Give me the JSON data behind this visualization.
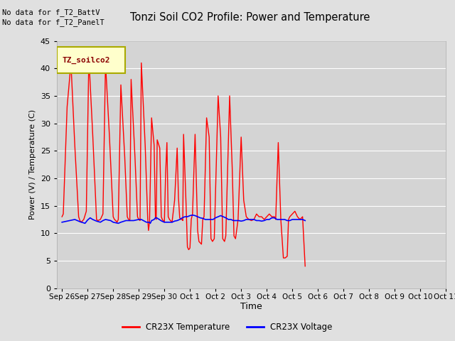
{
  "title": "Tonzi Soil CO2 Profile: Power and Temperature",
  "ylabel": "Power (V) / Temperature (C)",
  "xlabel": "Time",
  "ylim": [
    0,
    45
  ],
  "yticks": [
    0,
    5,
    10,
    15,
    20,
    25,
    30,
    35,
    40,
    45
  ],
  "fig_bg": "#e0e0e0",
  "plot_bg": "#d4d4d4",
  "annotations": [
    "No data for f_T2_BattV",
    "No data for f_T2_PanelT"
  ],
  "legend_box_label": "TZ_soilco2",
  "legend_box_color": "#ffffcc",
  "legend_box_border": "#aaaa00",
  "legend_entries": [
    "CR23X Temperature",
    "CR23X Voltage"
  ],
  "legend_colors": [
    "red",
    "blue"
  ],
  "temp_color": "red",
  "volt_color": "blue",
  "x_tick_labels": [
    "Sep 26",
    "Sep 27",
    "Sep 28",
    "Sep 29",
    "Sep 30",
    "Oct 1",
    "Oct 2",
    "Oct 3",
    "Oct 4",
    "Oct 5",
    "Oct 6",
    "Oct 7",
    "Oct 8",
    "Oct 9",
    "Oct 10",
    "Oct 11"
  ],
  "x_tick_positions": [
    0,
    1,
    2,
    3,
    4,
    5,
    6,
    7,
    8,
    9,
    10,
    11,
    12,
    13,
    14,
    15
  ],
  "temp_data": [
    [
      0.0,
      13.0
    ],
    [
      0.05,
      13.5
    ],
    [
      0.2,
      33.0
    ],
    [
      0.35,
      41.0
    ],
    [
      0.5,
      26.0
    ],
    [
      0.65,
      13.0
    ],
    [
      0.7,
      12.3
    ],
    [
      0.75,
      12.0
    ],
    [
      0.85,
      12.5
    ],
    [
      0.95,
      14.0
    ],
    [
      1.05,
      42.0
    ],
    [
      1.2,
      28.0
    ],
    [
      1.35,
      12.5
    ],
    [
      1.4,
      12.3
    ],
    [
      1.5,
      12.5
    ],
    [
      1.6,
      13.5
    ],
    [
      1.7,
      41.0
    ],
    [
      1.85,
      28.0
    ],
    [
      2.0,
      13.0
    ],
    [
      2.05,
      12.5
    ],
    [
      2.1,
      12.3
    ],
    [
      2.15,
      12.0
    ],
    [
      2.2,
      12.5
    ],
    [
      2.3,
      37.0
    ],
    [
      2.45,
      24.0
    ],
    [
      2.55,
      13.0
    ],
    [
      2.6,
      12.5
    ],
    [
      2.65,
      12.3
    ],
    [
      2.7,
      38.0
    ],
    [
      2.85,
      24.0
    ],
    [
      2.95,
      13.0
    ],
    [
      3.0,
      12.5
    ],
    [
      3.05,
      12.3
    ],
    [
      3.1,
      41.0
    ],
    [
      3.25,
      26.0
    ],
    [
      3.35,
      12.5
    ],
    [
      3.38,
      10.5
    ],
    [
      3.42,
      12.0
    ],
    [
      3.5,
      31.0
    ],
    [
      3.6,
      26.0
    ],
    [
      3.65,
      13.0
    ],
    [
      3.68,
      12.5
    ],
    [
      3.72,
      27.0
    ],
    [
      3.82,
      25.5
    ],
    [
      3.88,
      13.0
    ],
    [
      3.92,
      12.5
    ],
    [
      4.0,
      12.0
    ],
    [
      4.05,
      21.0
    ],
    [
      4.1,
      26.5
    ],
    [
      4.15,
      13.0
    ],
    [
      4.2,
      12.5
    ],
    [
      4.3,
      12.0
    ],
    [
      4.4,
      16.0
    ],
    [
      4.5,
      25.5
    ],
    [
      4.55,
      16.5
    ],
    [
      4.6,
      12.8
    ],
    [
      4.65,
      12.5
    ],
    [
      4.7,
      12.5
    ],
    [
      4.72,
      12.3
    ],
    [
      4.75,
      28.0
    ],
    [
      4.85,
      15.0
    ],
    [
      4.9,
      7.5
    ],
    [
      4.95,
      7.0
    ],
    [
      5.0,
      7.3
    ],
    [
      5.05,
      12.5
    ],
    [
      5.1,
      13.5
    ],
    [
      5.2,
      28.0
    ],
    [
      5.3,
      10.5
    ],
    [
      5.35,
      8.5
    ],
    [
      5.45,
      8.0
    ],
    [
      5.5,
      12.5
    ],
    [
      5.55,
      13.0
    ],
    [
      5.65,
      31.0
    ],
    [
      5.75,
      27.5
    ],
    [
      5.82,
      9.0
    ],
    [
      5.88,
      8.5
    ],
    [
      5.95,
      9.0
    ],
    [
      6.1,
      35.0
    ],
    [
      6.2,
      27.5
    ],
    [
      6.28,
      9.0
    ],
    [
      6.35,
      8.5
    ],
    [
      6.4,
      9.5
    ],
    [
      6.55,
      35.0
    ],
    [
      6.65,
      22.0
    ],
    [
      6.72,
      9.5
    ],
    [
      6.78,
      9.0
    ],
    [
      6.88,
      12.5
    ],
    [
      7.0,
      27.5
    ],
    [
      7.1,
      16.0
    ],
    [
      7.2,
      13.0
    ],
    [
      7.3,
      12.5
    ],
    [
      7.4,
      12.3
    ],
    [
      7.5,
      12.5
    ],
    [
      7.6,
      13.5
    ],
    [
      7.7,
      13.0
    ],
    [
      7.8,
      13.0
    ],
    [
      7.9,
      12.5
    ],
    [
      8.0,
      13.0
    ],
    [
      8.1,
      13.5
    ],
    [
      8.2,
      13.0
    ],
    [
      8.3,
      13.0
    ],
    [
      8.35,
      12.5
    ],
    [
      8.45,
      26.5
    ],
    [
      8.55,
      12.5
    ],
    [
      8.65,
      5.5
    ],
    [
      8.72,
      5.5
    ],
    [
      8.8,
      5.8
    ],
    [
      8.85,
      12.5
    ],
    [
      8.9,
      13.0
    ],
    [
      9.0,
      13.5
    ],
    [
      9.1,
      14.0
    ],
    [
      9.2,
      13.0
    ],
    [
      9.3,
      12.5
    ],
    [
      9.4,
      13.0
    ],
    [
      9.5,
      4.0
    ]
  ],
  "volt_data": [
    [
      0.0,
      12.0
    ],
    [
      0.3,
      12.3
    ],
    [
      0.5,
      12.5
    ],
    [
      0.7,
      12.1
    ],
    [
      0.9,
      11.8
    ],
    [
      1.0,
      12.4
    ],
    [
      1.1,
      12.8
    ],
    [
      1.2,
      12.5
    ],
    [
      1.35,
      12.2
    ],
    [
      1.5,
      12.0
    ],
    [
      1.6,
      12.3
    ],
    [
      1.7,
      12.5
    ],
    [
      1.9,
      12.3
    ],
    [
      2.0,
      12.0
    ],
    [
      2.2,
      11.8
    ],
    [
      2.3,
      12.0
    ],
    [
      2.5,
      12.3
    ],
    [
      2.6,
      12.3
    ],
    [
      2.8,
      12.3
    ],
    [
      3.0,
      12.5
    ],
    [
      3.1,
      12.5
    ],
    [
      3.3,
      12.0
    ],
    [
      3.4,
      12.0
    ],
    [
      3.45,
      11.8
    ],
    [
      3.5,
      12.3
    ],
    [
      3.6,
      12.5
    ],
    [
      3.65,
      12.8
    ],
    [
      3.7,
      12.8
    ],
    [
      3.8,
      12.5
    ],
    [
      3.9,
      12.2
    ],
    [
      4.0,
      12.0
    ],
    [
      4.1,
      12.0
    ],
    [
      4.2,
      12.0
    ],
    [
      4.3,
      12.0
    ],
    [
      4.4,
      12.2
    ],
    [
      4.5,
      12.3
    ],
    [
      4.6,
      12.5
    ],
    [
      4.7,
      12.8
    ],
    [
      4.8,
      13.0
    ],
    [
      4.9,
      13.0
    ],
    [
      5.0,
      13.2
    ],
    [
      5.1,
      13.3
    ],
    [
      5.2,
      13.2
    ],
    [
      5.3,
      13.0
    ],
    [
      5.4,
      12.8
    ],
    [
      5.5,
      12.7
    ],
    [
      5.6,
      12.5
    ],
    [
      5.7,
      12.5
    ],
    [
      5.8,
      12.5
    ],
    [
      5.9,
      12.5
    ],
    [
      6.0,
      12.8
    ],
    [
      6.1,
      13.0
    ],
    [
      6.2,
      13.2
    ],
    [
      6.3,
      13.0
    ],
    [
      6.4,
      12.8
    ],
    [
      6.5,
      12.5
    ],
    [
      6.6,
      12.5
    ],
    [
      6.7,
      12.3
    ],
    [
      6.8,
      12.3
    ],
    [
      6.9,
      12.3
    ],
    [
      7.0,
      12.2
    ],
    [
      7.1,
      12.3
    ],
    [
      7.2,
      12.5
    ],
    [
      7.3,
      12.5
    ],
    [
      7.4,
      12.5
    ],
    [
      7.5,
      12.5
    ],
    [
      7.6,
      12.3
    ],
    [
      7.7,
      12.3
    ],
    [
      7.8,
      12.2
    ],
    [
      7.9,
      12.3
    ],
    [
      8.0,
      12.5
    ],
    [
      8.1,
      12.5
    ],
    [
      8.2,
      12.8
    ],
    [
      8.3,
      12.8
    ],
    [
      8.4,
      12.5
    ],
    [
      8.5,
      12.5
    ],
    [
      8.6,
      12.5
    ],
    [
      8.7,
      12.5
    ],
    [
      8.8,
      12.3
    ],
    [
      8.9,
      12.3
    ],
    [
      9.0,
      12.5
    ],
    [
      9.1,
      12.5
    ],
    [
      9.2,
      12.5
    ],
    [
      9.3,
      12.5
    ],
    [
      9.4,
      12.5
    ],
    [
      9.5,
      12.3
    ]
  ]
}
